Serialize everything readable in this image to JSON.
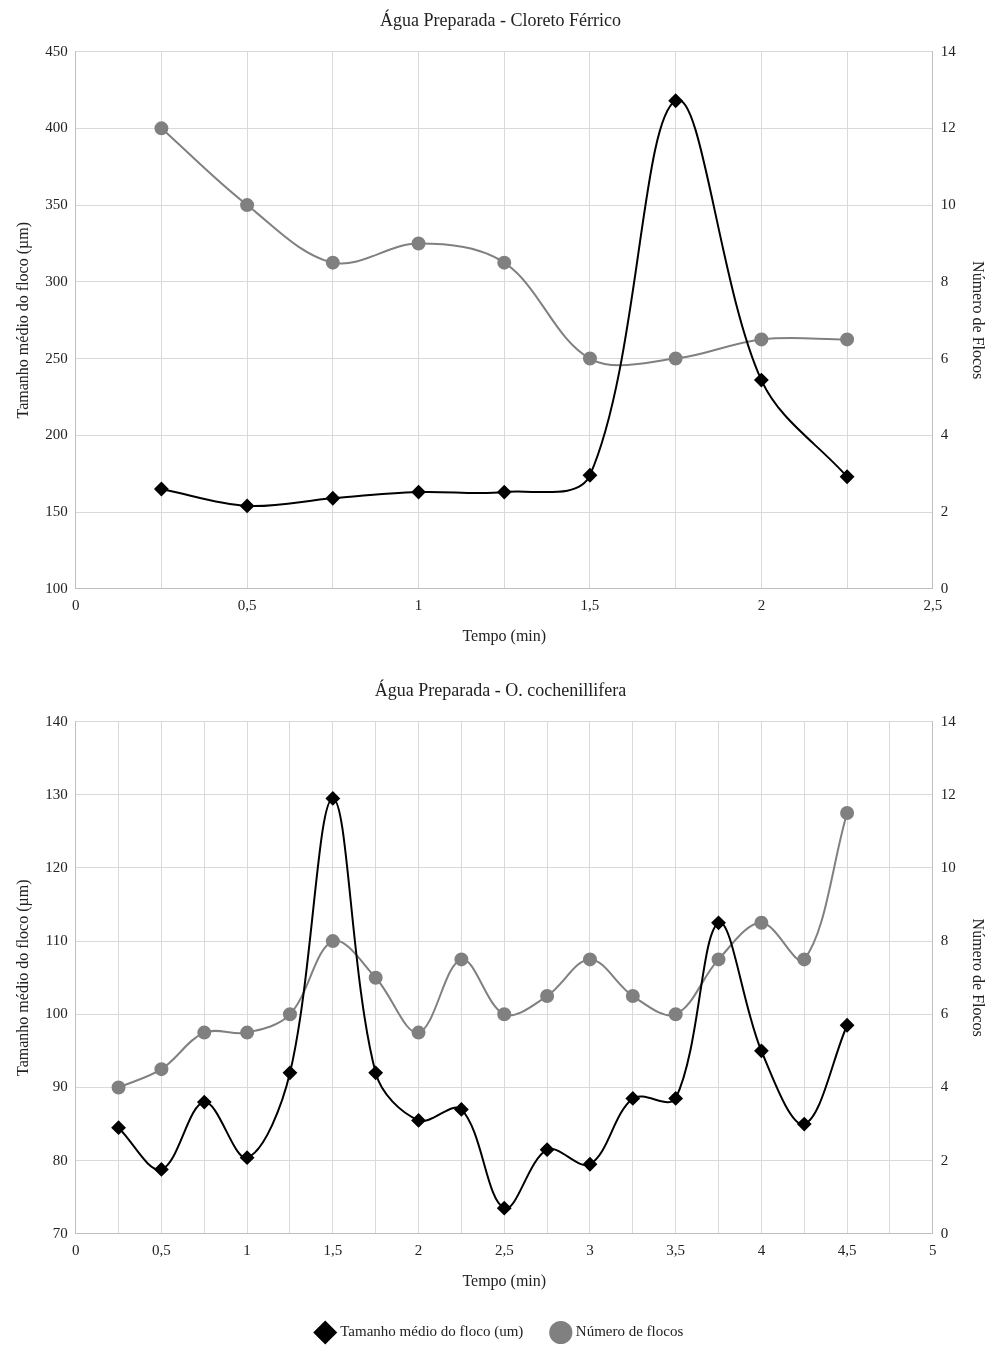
{
  "chart_data": [
    {
      "type": "line",
      "title": "Água Preparada - Cloreto Férrico",
      "xlabel": "Tempo (min)",
      "ylabel": "Tamanho médio do floco (µm)",
      "y2label": "Número de Flocos",
      "x": [
        0.25,
        0.5,
        0.75,
        1,
        1.25,
        1.5,
        1.75,
        2,
        2.25
      ],
      "series": [
        {
          "color": "#000000",
          "marker": "diamond",
          "values": [
            165,
            154,
            159,
            163,
            163,
            174,
            418,
            236,
            173
          ]
        },
        {
          "color": "#808080",
          "marker": "circle",
          "axis": "y2",
          "values": [
            12,
            10,
            8.5,
            9,
            8.5,
            6,
            6,
            6.5,
            6.5
          ]
        }
      ],
      "xlim": [
        0,
        2.5
      ],
      "xticks": [
        0,
        {
          "value": 0.25,
          "label": null
        },
        {
          "value": 0.5,
          "label": "0,5"
        },
        {
          "value": 0.75,
          "label": null
        },
        1,
        {
          "value": 1.25,
          "label": null
        },
        {
          "value": 1.5,
          "label": "1,5"
        },
        {
          "value": 1.75,
          "label": null
        },
        2,
        {
          "value": 2.25,
          "label": null
        },
        {
          "value": 2.5,
          "label": "2,5"
        }
      ],
      "ylim": [
        100,
        450
      ],
      "yticks": [
        100,
        150,
        200,
        250,
        300,
        350,
        400,
        450
      ],
      "y2lim": [
        0,
        14
      ],
      "y2ticks": [
        0,
        2,
        4,
        6,
        8,
        10,
        12,
        14
      ],
      "grid": true,
      "legend": false
    },
    {
      "type": "line",
      "title": "Água Preparada - O. cochenillifera",
      "xlabel": "Tempo (min)",
      "ylabel": "Tamanho médio do floco (µm)",
      "y2label": "Número de Flocos",
      "x": [
        0.25,
        0.5,
        0.75,
        1,
        1.25,
        1.5,
        1.75,
        2,
        2.25,
        2.5,
        2.75,
        3,
        3.25,
        3.5,
        3.75,
        4,
        4.25,
        4.5
      ],
      "series": [
        {
          "name": "Tamanho médio do floco (um)",
          "color": "#000000",
          "marker": "diamond",
          "values": [
            84.5,
            78.8,
            88,
            80.4,
            92,
            129.5,
            92,
            85.5,
            87,
            73.5,
            81.5,
            79.5,
            88.5,
            88.5,
            112.5,
            95,
            85,
            98.5
          ]
        },
        {
          "name": "Número de flocos",
          "color": "#808080",
          "marker": "circle",
          "axis": "y2",
          "values": [
            4,
            4.5,
            5.5,
            5.5,
            6,
            8,
            7,
            5.5,
            7.5,
            6,
            6.5,
            7.5,
            6.5,
            6,
            7.5,
            8.5,
            7.5,
            11.5
          ]
        }
      ],
      "xlim": [
        0,
        5
      ],
      "xticks": [
        0,
        {
          "value": 0.25,
          "label": null
        },
        {
          "value": 0.5,
          "label": "0,5"
        },
        {
          "value": 0.75,
          "label": null
        },
        1,
        {
          "value": 1.25,
          "label": null
        },
        {
          "value": 1.5,
          "label": "1,5"
        },
        {
          "value": 1.75,
          "label": null
        },
        2,
        {
          "value": 2.25,
          "label": null
        },
        {
          "value": 2.5,
          "label": "2,5"
        },
        {
          "value": 2.75,
          "label": null
        },
        3,
        {
          "value": 3.25,
          "label": null
        },
        {
          "value": 3.5,
          "label": "3,5"
        },
        {
          "value": 3.75,
          "label": null
        },
        4,
        {
          "value": 4.25,
          "label": null
        },
        {
          "value": 4.5,
          "label": "4,5"
        },
        {
          "value": 4.75,
          "label": null
        },
        5
      ],
      "ylim": [
        70,
        140
      ],
      "yticks": [
        70,
        80,
        90,
        100,
        110,
        120,
        130,
        140
      ],
      "y2lim": [
        0,
        14
      ],
      "y2ticks": [
        0,
        2,
        4,
        6,
        8,
        10,
        12,
        14
      ],
      "grid": true,
      "legend": "bottom"
    }
  ]
}
